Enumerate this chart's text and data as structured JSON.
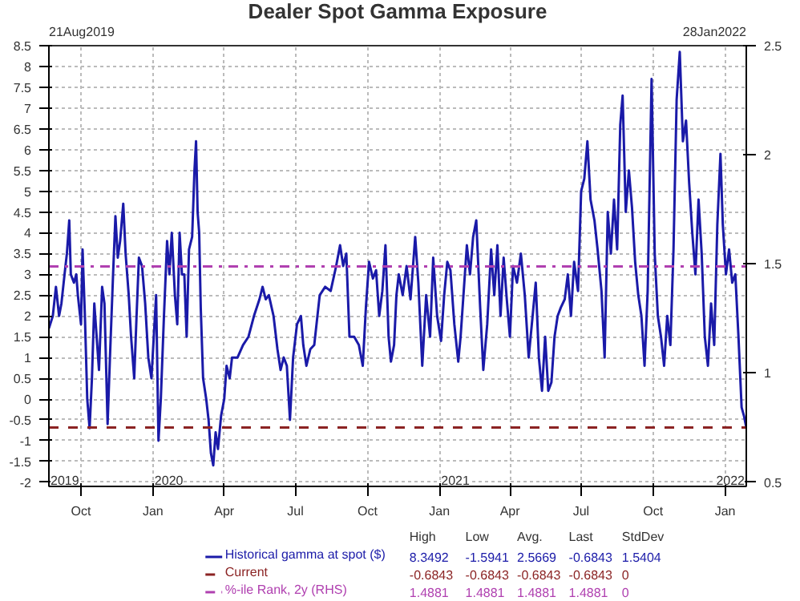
{
  "chart_data": {
    "type": "line",
    "title": "Dealer Spot Gamma Exposure",
    "x": [
      "2019-08-21",
      "2019-08-26",
      "2019-08-30",
      "2019-09-03",
      "2019-09-06",
      "2019-09-10",
      "2019-09-13",
      "2019-09-16",
      "2019-09-18",
      "2019-09-22",
      "2019-09-25",
      "2019-09-27",
      "2019-10-01",
      "2019-10-03",
      "2019-10-06",
      "2019-10-09",
      "2019-10-12",
      "2019-10-15",
      "2019-10-18",
      "2019-10-21",
      "2019-10-24",
      "2019-10-28",
      "2019-10-31",
      "2019-11-04",
      "2019-11-07",
      "2019-11-11",
      "2019-11-14",
      "2019-11-17",
      "2019-11-20",
      "2019-11-24",
      "2019-11-27",
      "2019-12-01",
      "2019-12-04",
      "2019-12-08",
      "2019-12-11",
      "2019-12-14",
      "2019-12-18",
      "2019-12-22",
      "2019-12-26",
      "2019-12-30",
      "2020-01-02",
      "2020-01-05",
      "2020-01-08",
      "2020-01-11",
      "2020-01-15",
      "2020-01-19",
      "2020-01-22",
      "2020-01-25",
      "2020-01-29",
      "2020-02-01",
      "2020-02-04",
      "2020-02-07",
      "2020-02-10",
      "2020-02-13",
      "2020-02-16",
      "2020-02-20",
      "2020-02-23",
      "2020-02-25",
      "2020-02-27",
      "2020-02-29",
      "2020-03-02",
      "2020-03-05",
      "2020-03-09",
      "2020-03-12",
      "2020-03-15",
      "2020-03-18",
      "2020-03-21",
      "2020-03-24",
      "2020-03-28",
      "2020-04-01",
      "2020-04-04",
      "2020-04-08",
      "2020-04-11",
      "2020-04-18",
      "2020-04-25",
      "2020-05-02",
      "2020-05-09",
      "2020-05-16",
      "2020-05-20",
      "2020-05-24",
      "2020-05-28",
      "2020-06-03",
      "2020-06-08",
      "2020-06-12",
      "2020-06-16",
      "2020-06-20",
      "2020-06-24",
      "2020-06-28",
      "2020-07-03",
      "2020-07-08",
      "2020-07-11",
      "2020-07-15",
      "2020-07-20",
      "2020-07-25",
      "2020-08-01",
      "2020-08-08",
      "2020-08-15",
      "2020-08-22",
      "2020-08-27",
      "2020-08-31",
      "2020-09-04",
      "2020-09-08",
      "2020-09-14",
      "2020-09-20",
      "2020-09-25",
      "2020-09-29",
      "2020-10-03",
      "2020-10-08",
      "2020-10-12",
      "2020-10-16",
      "2020-10-20",
      "2020-10-24",
      "2020-10-28",
      "2020-10-31",
      "2020-11-04",
      "2020-11-07",
      "2020-11-10",
      "2020-11-15",
      "2020-11-20",
      "2020-11-25",
      "2020-12-01",
      "2020-12-05",
      "2020-12-10",
      "2020-12-15",
      "2020-12-20",
      "2020-12-24",
      "2020-12-29",
      "2021-01-03",
      "2021-01-07",
      "2021-01-11",
      "2021-01-15",
      "2021-01-20",
      "2021-01-25",
      "2021-01-28",
      "2021-02-01",
      "2021-02-05",
      "2021-02-09",
      "2021-02-13",
      "2021-02-17",
      "2021-02-22",
      "2021-02-26",
      "2021-03-03",
      "2021-03-08",
      "2021-03-12",
      "2021-03-16",
      "2021-03-20",
      "2021-03-24",
      "2021-03-28",
      "2021-04-01",
      "2021-04-05",
      "2021-04-10",
      "2021-04-15",
      "2021-04-20",
      "2021-04-25",
      "2021-04-30",
      "2021-05-04",
      "2021-05-08",
      "2021-05-12",
      "2021-05-16",
      "2021-05-20",
      "2021-05-24",
      "2021-05-28",
      "2021-06-01",
      "2021-06-05",
      "2021-06-10",
      "2021-06-14",
      "2021-06-18",
      "2021-06-22",
      "2021-06-27",
      "2021-07-01",
      "2021-07-05",
      "2021-07-09",
      "2021-07-13",
      "2021-07-18",
      "2021-07-22",
      "2021-07-27",
      "2021-07-31",
      "2021-08-04",
      "2021-08-08",
      "2021-08-12",
      "2021-08-16",
      "2021-08-20",
      "2021-08-23",
      "2021-08-27",
      "2021-08-31",
      "2021-09-04",
      "2021-09-08",
      "2021-09-12",
      "2021-09-16",
      "2021-09-20",
      "2021-09-24",
      "2021-09-29",
      "2021-10-03",
      "2021-10-07",
      "2021-10-11",
      "2021-10-15",
      "2021-10-19",
      "2021-10-23",
      "2021-10-27",
      "2021-10-31",
      "2021-11-04",
      "2021-11-08",
      "2021-11-12",
      "2021-11-16",
      "2021-11-20",
      "2021-11-24",
      "2021-11-28",
      "2021-12-02",
      "2021-12-06",
      "2021-12-10",
      "2021-12-14",
      "2021-12-18",
      "2021-12-22",
      "2021-12-26",
      "2021-12-29",
      "2022-01-02",
      "2022-01-06",
      "2022-01-10",
      "2022-01-14",
      "2022-01-18",
      "2022-01-22",
      "2022-01-25",
      "2022-01-28"
    ],
    "series": [
      {
        "name": "Historical gamma at spot ($)",
        "color": "#1a1aa8",
        "values": [
          1.7,
          2.0,
          2.7,
          2.0,
          2.3,
          3.0,
          3.5,
          4.3,
          3.0,
          2.8,
          3.0,
          2.5,
          1.8,
          3.6,
          2.0,
          0.0,
          -0.7,
          0.5,
          2.3,
          1.5,
          0.7,
          2.7,
          2.3,
          -0.6,
          1.0,
          3.0,
          4.4,
          3.4,
          3.8,
          4.7,
          3.5,
          2.5,
          1.5,
          0.5,
          2.0,
          3.4,
          3.2,
          2.3,
          1.0,
          0.5,
          1.5,
          2.5,
          -1.0,
          0.0,
          2.0,
          3.8,
          3.0,
          4.0,
          2.5,
          1.8,
          4.0,
          3.0,
          3.0,
          1.5,
          3.6,
          3.9,
          5.5,
          6.2,
          4.5,
          4.0,
          2.2,
          0.5,
          0.0,
          -0.5,
          -1.3,
          -1.5941,
          -0.8,
          -1.2,
          -0.4,
          0.0,
          0.8,
          0.5,
          1.0,
          1.0,
          1.3,
          1.5,
          2.0,
          2.4,
          2.7,
          2.4,
          2.5,
          2.0,
          1.2,
          0.7,
          1.0,
          0.8,
          -0.5,
          1.0,
          1.8,
          2.0,
          1.3,
          0.8,
          1.2,
          1.3,
          2.5,
          2.7,
          2.6,
          3.2,
          3.7,
          3.2,
          3.5,
          1.5,
          1.5,
          1.3,
          0.8,
          2.2,
          3.3,
          2.9,
          3.1,
          2.0,
          2.6,
          3.7,
          1.5,
          0.9,
          1.3,
          2.5,
          3.0,
          2.5,
          3.2,
          2.4,
          3.9,
          2.8,
          0.8,
          2.5,
          1.5,
          3.4,
          2.0,
          1.4,
          2.5,
          3.3,
          3.1,
          1.8,
          0.9,
          1.5,
          2.6,
          3.7,
          3.0,
          3.9,
          4.3,
          2.2,
          0.7,
          1.8,
          3.6,
          2.5,
          3.7,
          2.0,
          3.4,
          2.4,
          1.5,
          3.2,
          2.8,
          3.5,
          2.5,
          1.0,
          2.0,
          2.8,
          1.0,
          0.2,
          1.5,
          0.2,
          0.4,
          1.5,
          2.0,
          2.2,
          2.4,
          3.0,
          2.0,
          3.3,
          2.6,
          5.0,
          5.3,
          6.2,
          4.8,
          4.3,
          3.6,
          2.6,
          1.0,
          4.5,
          3.5,
          4.8,
          3.6,
          6.6,
          7.3,
          4.5,
          5.5,
          4.6,
          3.3,
          2.5,
          2.0,
          0.8,
          2.6,
          7.7,
          3.5,
          2.0,
          1.5,
          0.8,
          2.0,
          1.3,
          3.6,
          7.2,
          8.3492,
          6.2,
          6.7,
          5.2,
          4.0,
          3.0,
          4.8,
          3.5,
          1.5,
          0.8,
          2.3,
          1.3,
          4.2,
          5.9,
          4.2,
          3.0,
          3.6,
          2.8,
          3.0,
          1.5,
          -0.2,
          -0.4,
          -0.6843
        ]
      },
      {
        "name": "Current",
        "color": "#8b2323",
        "line_style": "dashed",
        "x": [
          "2019-08-21",
          "2022-01-28"
        ],
        "values": [
          -0.6843,
          -0.6843
        ]
      },
      {
        "name": "%-ile Rank, 2y (RHS)",
        "color": "#b040b0",
        "line_style": "dotted",
        "axis": "y2",
        "x": [
          "2019-08-21",
          "2022-01-28"
        ],
        "values": [
          1.4881,
          1.4881
        ]
      }
    ],
    "xlim": [
      "2019-08-21",
      "2022-01-28"
    ],
    "xticks": [
      {
        "value": "2019-10-01",
        "label": "Oct"
      },
      {
        "value": "2020-01-01",
        "label": "Jan"
      },
      {
        "value": "2020-04-01",
        "label": "Apr"
      },
      {
        "value": "2020-07-01",
        "label": "Jul"
      },
      {
        "value": "2020-10-01",
        "label": "Oct"
      },
      {
        "value": "2021-01-01",
        "label": "Jan"
      },
      {
        "value": "2021-04-01",
        "label": "Apr"
      },
      {
        "value": "2021-07-01",
        "label": "Jul"
      },
      {
        "value": "2021-10-01",
        "label": "Oct"
      },
      {
        "value": "2022-01-01",
        "label": "Jan"
      }
    ],
    "ylim": [
      -2.1,
      8.5
    ],
    "yticks": [
      -2,
      -1.5,
      -1,
      -0.5,
      0,
      0.5,
      1,
      1.5,
      2,
      2.5,
      3,
      3.5,
      4,
      4.5,
      5,
      5.5,
      6,
      6.5,
      7,
      7.5,
      8,
      8.5
    ],
    "y2lim": [
      0.48,
      2.5
    ],
    "y2ticks": [
      0.5,
      1,
      1.5,
      2,
      2.5
    ],
    "grid": true,
    "legend": "bottom",
    "line_style": "solid",
    "annotations": [
      "21Aug2019",
      "28Jan2022",
      "2019",
      "2020",
      "2021",
      "2022",
      "High",
      "Low",
      "Avg.",
      "Last",
      "StdDev",
      "8.3492",
      "-1.5941",
      "2.5669",
      "-0.6843",
      "1.5404",
      "-0.6843",
      "-0.6843",
      "-0.6843",
      "-0.6843",
      "0",
      "1.4881",
      "1.4881",
      "1.4881",
      "1.4881",
      "0"
    ]
  }
}
